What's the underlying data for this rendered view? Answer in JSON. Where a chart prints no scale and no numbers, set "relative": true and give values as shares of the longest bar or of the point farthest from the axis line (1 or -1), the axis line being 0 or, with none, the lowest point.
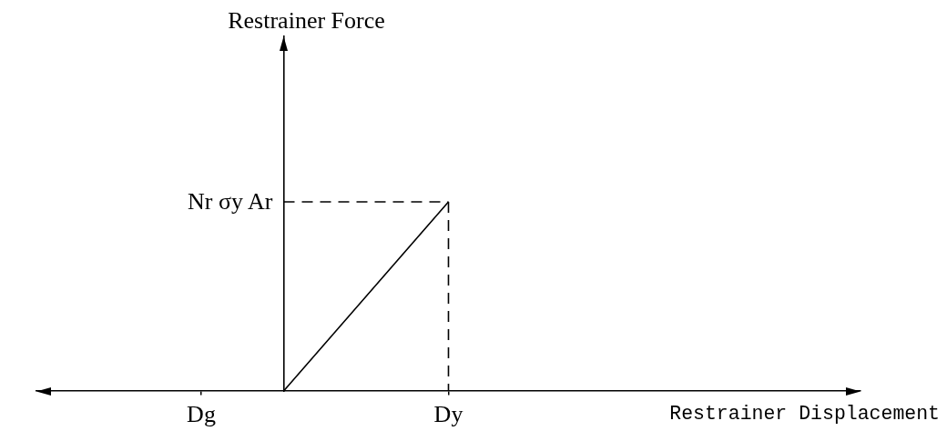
{
  "chart_data": {
    "type": "line",
    "relative": true,
    "xlabel": "Restrainer Displacement",
    "categories": [
      null,
      null,
      "Dg",
      null,
      null,
      "Dy",
      null,
      null,
      null,
      null,
      null
    ],
    "series": [
      {
        "color": "#000000",
        "values": [
          null,
          null,
          null,
          0,
          0.5,
          1,
          null,
          null,
          null,
          null,
          null
        ]
      },
      {
        "color": "#000000",
        "values": [
          null,
          null,
          null,
          1,
          1,
          1,
          null,
          null,
          null,
          null,
          null
        ],
        "line_style": "dashed"
      },
      {
        "color": "#000000",
        "x": [
          "Dy",
          "Dy"
        ],
        "values": [
          1,
          0
        ],
        "line_style": "dashed"
      }
    ],
    "annotations": [
      "Restrainer Force",
      "Nr σy Ar"
    ]
  }
}
